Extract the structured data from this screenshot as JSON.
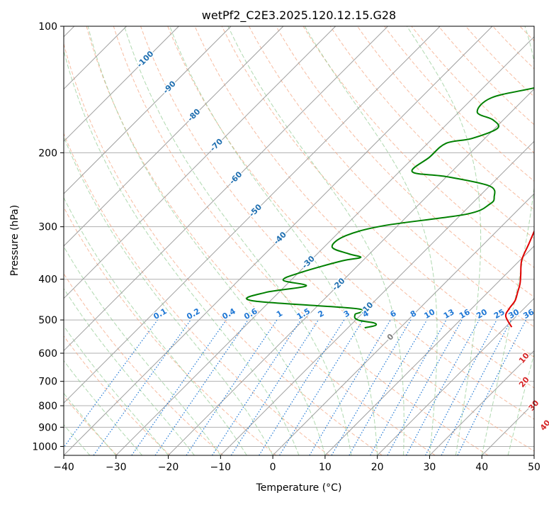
{
  "chart_data": {
    "type": "skew-t log-p diagram",
    "title": "wetPf2_C2E3.2025.120.12.15.G28",
    "xlabel": "Temperature (°C)",
    "ylabel": "Pressure (hPa)",
    "xlim": [
      -40,
      50
    ],
    "ylim": [
      1050,
      100
    ],
    "y_scale": "log",
    "x_ticks": [
      -40,
      -30,
      -20,
      -10,
      0,
      10,
      20,
      30,
      40,
      50
    ],
    "x_tick_labels": [
      "−40",
      "−30",
      "−20",
      "−10",
      "0",
      "10",
      "20",
      "30",
      "40",
      "50"
    ],
    "y_ticks": [
      100,
      200,
      300,
      400,
      500,
      600,
      700,
      800,
      900,
      1000
    ],
    "y_tick_labels": [
      "100",
      "200",
      "300",
      "400",
      "500",
      "600",
      "700",
      "800",
      "900",
      "1000"
    ],
    "grid": true,
    "colors": {
      "temperature": "#e00000",
      "dewpoint": "#008000",
      "isotherm": "#a0a0a0",
      "dry_adiabat": "#f4a582",
      "moist_adiabat": "#8fc98f",
      "mixing_ratio": "#1f77d4",
      "isotherm_label": "#1f6fb0",
      "adiabat_label": "#d62728"
    },
    "isotherm_labels": [
      {
        "value": -100,
        "text": "-100",
        "p": 120
      },
      {
        "value": -90,
        "text": "-90",
        "p": 140
      },
      {
        "value": -80,
        "text": "-80",
        "p": 163
      },
      {
        "value": -70,
        "text": "-70",
        "p": 192
      },
      {
        "value": -60,
        "text": "-60",
        "p": 230
      },
      {
        "value": -50,
        "text": "-50",
        "p": 275
      },
      {
        "value": -40,
        "text": "-40",
        "p": 320
      },
      {
        "value": -30,
        "text": "-30",
        "p": 365
      },
      {
        "value": -20,
        "text": "-20",
        "p": 412
      },
      {
        "value": -10,
        "text": "-10",
        "p": 470
      },
      {
        "value": 0,
        "text": "0",
        "p": 550
      }
    ],
    "mixing_ratio_labels": [
      {
        "value": 0.1,
        "text": "0.1"
      },
      {
        "value": 0.2,
        "text": "0.2"
      },
      {
        "value": 0.4,
        "text": "0.4"
      },
      {
        "value": 0.6,
        "text": "0.6"
      },
      {
        "value": 1,
        "text": "1"
      },
      {
        "value": 1.5,
        "text": "1.5"
      },
      {
        "value": 2,
        "text": "2"
      },
      {
        "value": 3,
        "text": "3"
      },
      {
        "value": 4,
        "text": "4"
      },
      {
        "value": 6,
        "text": "6"
      },
      {
        "value": 8,
        "text": "8"
      },
      {
        "value": 10,
        "text": "10"
      },
      {
        "value": 13,
        "text": "13"
      },
      {
        "value": 16,
        "text": "16"
      },
      {
        "value": 20,
        "text": "20"
      },
      {
        "value": 25,
        "text": "25"
      },
      {
        "value": 30,
        "text": "30"
      },
      {
        "value": 36,
        "text": "36"
      }
    ],
    "adiabat_labels": [
      {
        "value": 10,
        "text": "10",
        "T": 29.6,
        "p": 617
      },
      {
        "value": 20,
        "text": "20",
        "T": 34.2,
        "p": 704
      },
      {
        "value": 30,
        "text": "30",
        "T": 40.5,
        "p": 800
      },
      {
        "value": 40,
        "text": "40",
        "T": 46.5,
        "p": 892
      }
    ],
    "series": [
      {
        "key": "temperature",
        "points": [
          [
            100,
            4.6
          ],
          [
            120,
            3.6
          ],
          [
            140,
            6.5
          ],
          [
            160,
            5.0
          ],
          [
            180,
            3.2
          ],
          [
            200,
            3.0
          ],
          [
            220,
            3.8
          ],
          [
            240,
            3.0
          ],
          [
            250,
            2.6
          ],
          [
            270,
            4.5
          ],
          [
            300,
            6.7
          ],
          [
            330,
            8.6
          ],
          [
            360,
            10.3
          ],
          [
            390,
            12.9
          ],
          [
            410,
            14.5
          ],
          [
            430,
            15.7
          ],
          [
            450,
            16.8
          ],
          [
            470,
            17.2
          ],
          [
            490,
            18.0
          ],
          [
            520,
            21.2
          ]
        ]
      },
      {
        "key": "dewpoint",
        "points": [
          [
            100,
            -1.8
          ],
          [
            110,
            -3.5
          ],
          [
            122,
            -6.2
          ],
          [
            130,
            -11
          ],
          [
            140,
            -20
          ],
          [
            148,
            -26.5
          ],
          [
            160,
            -26.5
          ],
          [
            167,
            -22
          ],
          [
            175,
            -19.5
          ],
          [
            185,
            -22.5
          ],
          [
            190,
            -26.5
          ],
          [
            205,
            -27
          ],
          [
            222,
            -27.5
          ],
          [
            228,
            -20
          ],
          [
            240,
            -10
          ],
          [
            255,
            -7
          ],
          [
            265,
            -6.5
          ],
          [
            280,
            -9
          ],
          [
            298,
            -22.5
          ],
          [
            315,
            -28
          ],
          [
            335,
            -28.5
          ],
          [
            348,
            -24
          ],
          [
            355,
            -21
          ],
          [
            362,
            -24
          ],
          [
            385,
            -29.5
          ],
          [
            402,
            -31.5
          ],
          [
            415,
            -26
          ],
          [
            430,
            -32.5
          ],
          [
            450,
            -33.5
          ],
          [
            470,
            -12
          ],
          [
            485,
            -11.2
          ],
          [
            495,
            -10.5
          ],
          [
            502,
            -9
          ],
          [
            508,
            -6
          ],
          [
            515,
            -5.2
          ],
          [
            522,
            -6.8
          ]
        ]
      }
    ]
  }
}
